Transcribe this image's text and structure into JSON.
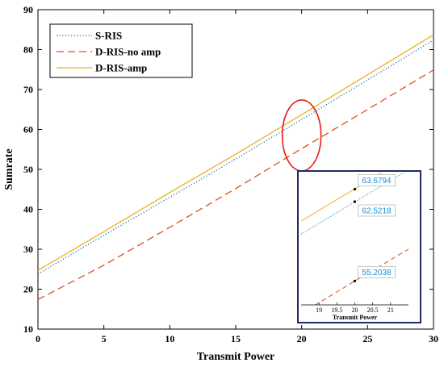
{
  "chart_data": {
    "type": "line",
    "xlabel": "Transmit Power",
    "ylabel": "Sumrate",
    "xlim": [
      0,
      30
    ],
    "ylim": [
      10,
      90
    ],
    "xticks": [
      "0",
      "5",
      "10",
      "15",
      "20",
      "25",
      "30"
    ],
    "yticks": [
      "10",
      "20",
      "30",
      "40",
      "50",
      "60",
      "70",
      "80",
      "90"
    ],
    "grid": false,
    "legend_position": "top-left",
    "series": [
      {
        "name": "S-RIS",
        "color": "#0072BD",
        "style": "dotted",
        "x": [
          0,
          5,
          10,
          15,
          20,
          25,
          30
        ],
        "y": [
          23.8,
          33.5,
          43.0,
          52.6,
          62.5,
          72.4,
          82.4
        ]
      },
      {
        "name": "D-RIS-no amp",
        "color": "#D95319",
        "style": "dashed",
        "x": [
          0,
          5,
          10,
          15,
          20,
          25,
          30
        ],
        "y": [
          17.4,
          26.0,
          35.5,
          45.2,
          55.2,
          65.0,
          74.9
        ]
      },
      {
        "name": "D-RIS-amp",
        "color": "#EDB120",
        "style": "solid",
        "x": [
          0,
          5,
          10,
          15,
          20,
          25,
          30
        ],
        "y": [
          24.7,
          34.4,
          44.2,
          53.8,
          63.7,
          73.7,
          83.7
        ]
      }
    ],
    "annotations": [
      {
        "type": "ellipse",
        "color": "#E41A1C",
        "center_x": 20,
        "center_y": 58.5
      }
    ],
    "inset": {
      "xlabel": "Transmit Power",
      "xlim": [
        18.5,
        21.5
      ],
      "xticks": [
        "19",
        "19.5",
        "20",
        "20.5",
        "21"
      ],
      "datatips": [
        {
          "x": 20,
          "y": 63.6794,
          "label": "63.6794"
        },
        {
          "x": 20,
          "y": 62.5218,
          "label": "62.5218"
        },
        {
          "x": 20,
          "y": 55.2038,
          "label": "55.2038"
        }
      ]
    }
  }
}
